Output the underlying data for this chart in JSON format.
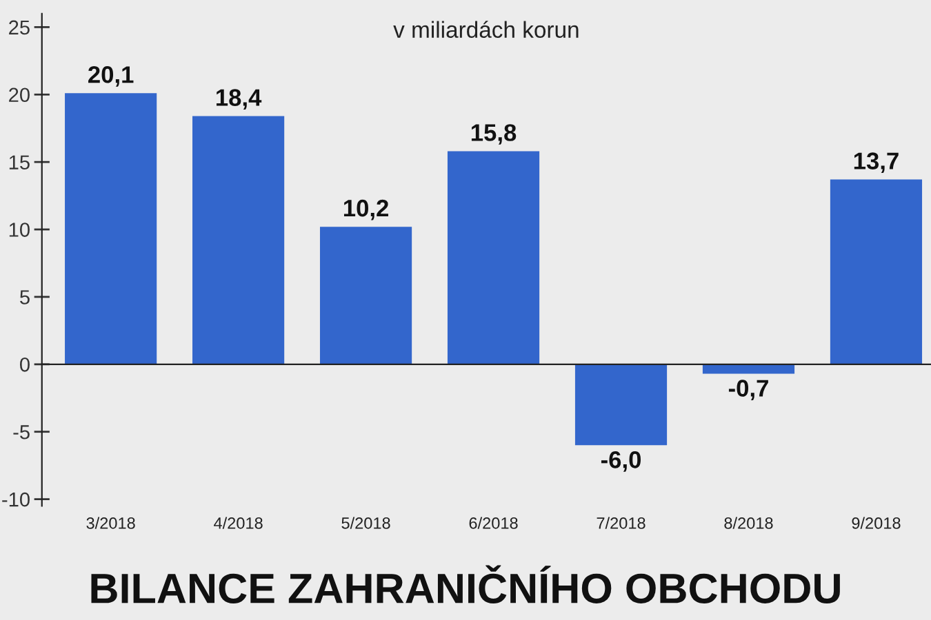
{
  "chart_data": {
    "type": "bar",
    "title": "BILANCE ZAHRANIČNÍHO OBCHODU",
    "subtitle": "v miliardách korun",
    "categories": [
      "3/2018",
      "4/2018",
      "5/2018",
      "6/2018",
      "7/2018",
      "8/2018",
      "9/2018"
    ],
    "values": [
      20.1,
      18.4,
      10.2,
      15.8,
      -6.0,
      -0.7,
      13.7
    ],
    "value_labels": [
      "20,1",
      "18,4",
      "10,2",
      "15,8",
      "-6,0",
      "-0,7",
      "13,7"
    ],
    "color": "#3366cc",
    "ylim": [
      -10.5,
      26
    ],
    "yticks": [
      -10,
      -5,
      0,
      5,
      10,
      15,
      20,
      25
    ]
  }
}
